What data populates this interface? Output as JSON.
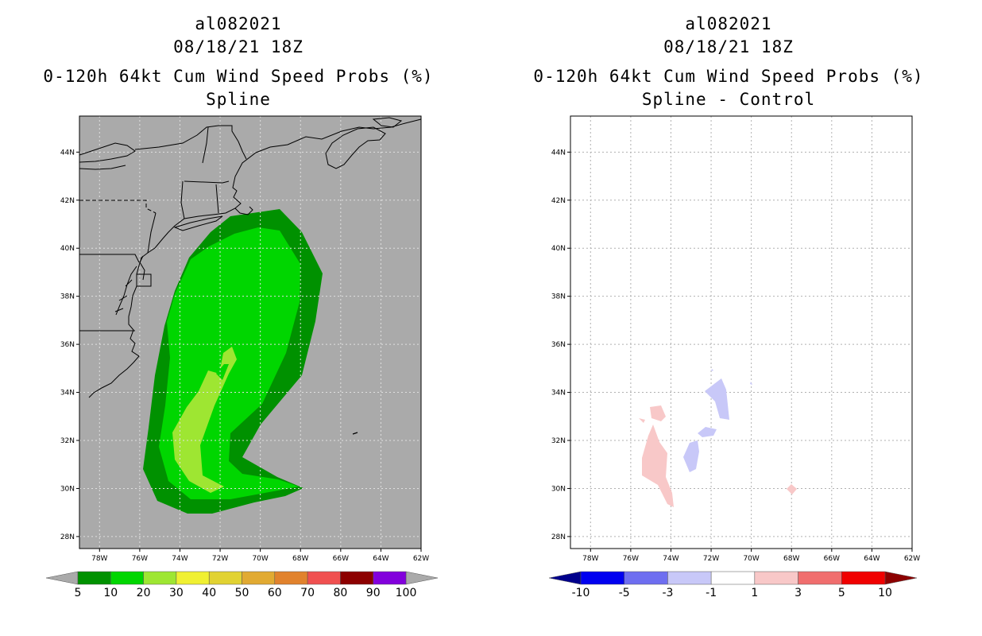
{
  "left_panel": {
    "storm_id": "al082021",
    "datetime": "08/18/21 18Z",
    "product": "0-120h 64kt Cum Wind Speed Probs (%)",
    "subtitle": "Spline",
    "background_color": "#aaaaaa",
    "colorbar": {
      "levels": [
        "5",
        "10",
        "20",
        "30",
        "40",
        "50",
        "60",
        "70",
        "80",
        "90",
        "100"
      ],
      "colors": [
        "#009100",
        "#00d600",
        "#9ee632",
        "#f0f032",
        "#e1d232",
        "#e1aa32",
        "#e1822d",
        "#f05050",
        "#8c0000",
        "#8200dc"
      ],
      "extend_color": "#aaaaaa"
    }
  },
  "right_panel": {
    "storm_id": "al082021",
    "datetime": "08/18/21 18Z",
    "product": "0-120h 64kt Cum Wind Speed Probs (%)",
    "subtitle": "Spline - Control",
    "background_color": "#ffffff",
    "colorbar": {
      "levels": [
        "-10",
        "-5",
        "-3",
        "-1",
        "1",
        "3",
        "5",
        "10"
      ],
      "colors": [
        "#0000f0",
        "#6e6ef0",
        "#c8c8f8",
        "#ffffff",
        "#f8c8c8",
        "#f06e6e",
        "#f00000"
      ],
      "extend_low": "#00008c",
      "extend_high": "#8c0000"
    }
  },
  "chart_data": {
    "type": "map",
    "lon_range": [
      -79,
      -62
    ],
    "lat_range": [
      27.5,
      45.5
    ],
    "lon_ticks": [
      "78W",
      "76W",
      "74W",
      "72W",
      "70W",
      "68W",
      "66W",
      "64W",
      "62W"
    ],
    "lat_ticks": [
      "28N",
      "30N",
      "32N",
      "34N",
      "36N",
      "38N",
      "40N",
      "42N",
      "44N"
    ]
  }
}
